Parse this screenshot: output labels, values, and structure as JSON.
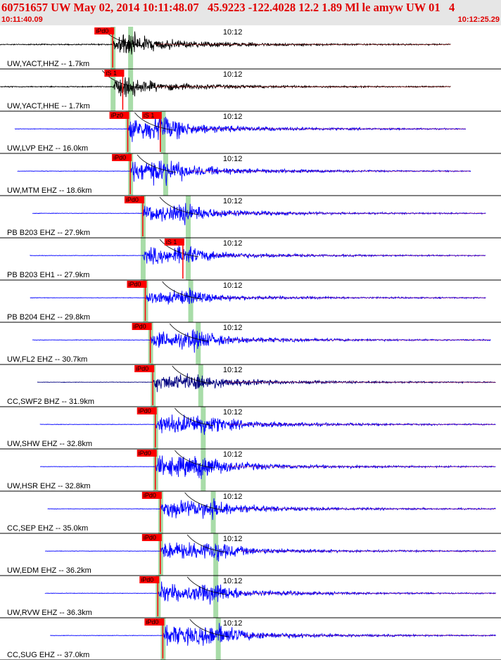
{
  "header": {
    "title": "60751657 UW May 02, 2014 10:11:48.07   45.9223 -122.4028 12.2 1.89 Ml le amyw UW 01   4",
    "start_time": "10:11:40.09",
    "end_time": "10:12:25.29"
  },
  "chart_data": {
    "type": "seismogram",
    "time_start": "10:11:40.09",
    "time_end": "10:12:25.29",
    "time_tick_label": "10:12",
    "colors": {
      "trace_a": "#000000",
      "trace_b": "#0000ff",
      "overlay": "#ff0000",
      "pick_box": "#ff0000",
      "window": "#a8dca8"
    },
    "traces": [
      {
        "label": "UW,YACT,HHZ -- 1.7km",
        "color": "#000000",
        "start": 0.0,
        "p": 0.225,
        "s": 0.26,
        "end": 0.9,
        "picks": [
          {
            "label": "iPd0",
            "t": 0.225
          }
        ],
        "amp": 0.7
      },
      {
        "label": "UW,YACT,HHE -- 1.7km",
        "color": "#000000",
        "start": 0.0,
        "p": 0.225,
        "s": 0.26,
        "end": 0.9,
        "picks": [
          {
            "label": "iS 1",
            "t": 0.245
          }
        ],
        "amp": 0.55
      },
      {
        "label": "UW,LVP EHZ -- 16.0km",
        "color": "#0000ff",
        "start": 0.03,
        "p": 0.255,
        "s": 0.325,
        "end": 0.93,
        "picks": [
          {
            "label": "iPz0",
            "t": 0.255
          },
          {
            "label": "iS 1",
            "t": 0.32
          }
        ],
        "amp": 0.9
      },
      {
        "label": "UW,MTM EHZ -- 18.6km",
        "color": "#0000ff",
        "start": 0.035,
        "p": 0.26,
        "s": 0.33,
        "end": 0.94,
        "picks": [
          {
            "label": "iPd0",
            "t": 0.26
          }
        ],
        "amp": 0.85
      },
      {
        "label": "PB B203 EHZ -- 27.9km",
        "color": "#0000ff",
        "start": 0.065,
        "p": 0.285,
        "s": 0.375,
        "end": 0.97,
        "picks": [
          {
            "label": "iPd0",
            "t": 0.285
          }
        ],
        "amp": 0.75
      },
      {
        "label": "PB B203 EH1 -- 27.9km",
        "color": "#0000ff",
        "start": 0.06,
        "p": 0.285,
        "s": 0.375,
        "end": 0.97,
        "picks": [
          {
            "label": "iS 1",
            "t": 0.365
          }
        ],
        "amp": 0.7
      },
      {
        "label": "PB B204 EHZ -- 29.8km",
        "color": "#0000ff",
        "start": 0.06,
        "p": 0.29,
        "s": 0.38,
        "end": 0.97,
        "picks": [
          {
            "label": "iPd0",
            "t": 0.29
          }
        ],
        "amp": 0.55
      },
      {
        "label": "UW,FL2 EHZ -- 30.7km",
        "color": "#0000ff",
        "start": 0.065,
        "p": 0.3,
        "s": 0.395,
        "end": 0.98,
        "picks": [
          {
            "label": "iPd0",
            "t": 0.3
          }
        ],
        "amp": 0.75
      },
      {
        "label": "CC,SWF2 BHZ -- 31.9km",
        "color": "#000080",
        "start": 0.075,
        "p": 0.305,
        "s": 0.4,
        "end": 0.99,
        "picks": [
          {
            "label": "iPd0",
            "t": 0.305
          }
        ],
        "amp": 0.7
      },
      {
        "label": "UW,SHW EHZ -- 32.8km",
        "color": "#0000ff",
        "start": 0.08,
        "p": 0.31,
        "s": 0.405,
        "end": 0.99,
        "picks": [
          {
            "label": "iPd0",
            "t": 0.31
          }
        ],
        "amp": 0.85
      },
      {
        "label": "UW,HSR EHZ -- 32.8km",
        "color": "#0000ff",
        "start": 0.08,
        "p": 0.31,
        "s": 0.405,
        "end": 0.99,
        "picks": [
          {
            "label": "iPd0",
            "t": 0.31
          }
        ],
        "amp": 0.9
      },
      {
        "label": "CC,SEP EHZ -- 35.0km",
        "color": "#0000ff",
        "start": 0.095,
        "p": 0.32,
        "s": 0.425,
        "end": 0.99,
        "picks": [
          {
            "label": "iPd0",
            "t": 0.32
          }
        ],
        "amp": 0.8
      },
      {
        "label": "UW,EDM EHZ -- 36.2km",
        "color": "#0000ff",
        "start": 0.09,
        "p": 0.32,
        "s": 0.43,
        "end": 0.99,
        "picks": [
          {
            "label": "iPd0",
            "t": 0.32
          }
        ],
        "amp": 0.8
      },
      {
        "label": "UW,RVW EHZ -- 36.3km",
        "color": "#0000ff",
        "start": 0.09,
        "p": 0.315,
        "s": 0.43,
        "end": 0.99,
        "picks": [
          {
            "label": "iPd0",
            "t": 0.315
          }
        ],
        "amp": 0.8
      },
      {
        "label": "CC,SUG EHZ -- 37.0km",
        "color": "#0000ff",
        "start": 0.1,
        "p": 0.325,
        "s": 0.435,
        "end": 0.99,
        "picks": [
          {
            "label": "iPd0",
            "t": 0.325
          }
        ],
        "amp": 0.9
      }
    ]
  }
}
